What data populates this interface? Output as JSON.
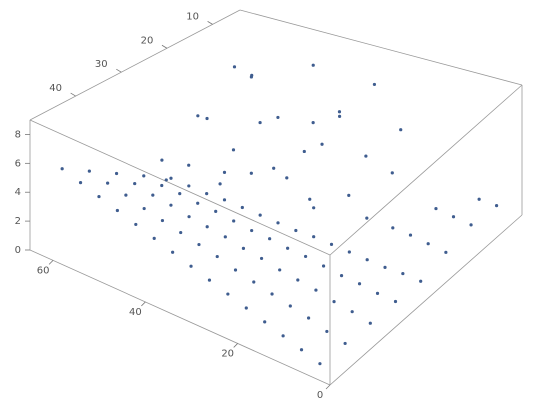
{
  "chart_data": {
    "type": "scatter3d",
    "color": "#3f5d8f",
    "xlim": [
      0,
      65
    ],
    "ylim": [
      4,
      50
    ],
    "zlim": [
      0,
      9
    ],
    "xticks": [
      0,
      20,
      40,
      60
    ],
    "yticks": [
      10,
      20,
      30,
      40
    ],
    "zticks": [
      0,
      2,
      4,
      6,
      8
    ],
    "x": [
      4,
      8,
      12,
      16,
      20,
      24,
      28,
      32,
      36,
      40,
      44,
      48,
      52,
      56,
      60,
      4,
      8,
      12,
      16,
      20,
      24,
      28,
      32,
      36,
      40,
      44,
      48,
      52,
      56,
      60,
      4,
      8,
      12,
      16,
      20,
      24,
      28,
      32,
      36,
      40,
      44,
      48,
      52,
      56,
      60,
      4,
      8,
      12,
      16,
      20,
      24,
      28,
      32,
      36,
      40,
      44,
      48,
      52,
      56,
      60,
      4,
      8,
      12,
      16,
      20,
      24,
      28,
      32,
      36,
      40,
      44,
      48,
      52,
      56,
      60,
      4,
      8,
      12,
      4,
      8,
      12,
      16,
      2,
      6,
      22,
      26,
      30,
      34,
      38,
      42,
      46,
      50,
      54,
      58,
      24,
      28,
      32,
      36,
      40,
      44,
      48,
      52,
      56,
      60,
      20,
      30,
      40,
      50,
      60,
      35,
      45,
      25,
      55,
      18
    ],
    "y": [
      24,
      24,
      24,
      24,
      24,
      24,
      24,
      24,
      24,
      24,
      24,
      24,
      24,
      24,
      24,
      30,
      30,
      30,
      30,
      30,
      30,
      30,
      30,
      30,
      30,
      30,
      30,
      30,
      30,
      30,
      36,
      36,
      36,
      36,
      36,
      36,
      36,
      36,
      36,
      36,
      36,
      36,
      36,
      36,
      36,
      42,
      42,
      42,
      42,
      42,
      42,
      42,
      42,
      42,
      42,
      42,
      42,
      42,
      42,
      42,
      48,
      48,
      48,
      48,
      48,
      48,
      48,
      48,
      48,
      48,
      48,
      48,
      48,
      48,
      48,
      12,
      12,
      12,
      18,
      18,
      18,
      18,
      8,
      8,
      10,
      14,
      8,
      12,
      16,
      10,
      14,
      20,
      12,
      18,
      20,
      24,
      18,
      22,
      26,
      20,
      24,
      28,
      22,
      26,
      14,
      16,
      12,
      16,
      10,
      26,
      28,
      28,
      30,
      22
    ],
    "z": [
      0.1,
      0.2,
      0.2,
      0.3,
      0.4,
      0.5,
      0.6,
      0.6,
      0.7,
      0.8,
      0.9,
      1.0,
      1.0,
      1.1,
      1.2,
      0.2,
      0.3,
      0.5,
      0.6,
      0.8,
      1.0,
      1.1,
      1.3,
      1.4,
      1.6,
      1.8,
      1.9,
      2.1,
      2.2,
      2.4,
      0.2,
      0.5,
      0.7,
      1.0,
      1.2,
      1.4,
      1.7,
      1.9,
      2.2,
      2.4,
      2.6,
      2.9,
      3.1,
      3.4,
      3.6,
      0.3,
      0.6,
      1.0,
      1.3,
      1.6,
      1.9,
      2.2,
      2.6,
      2.9,
      3.2,
      3.5,
      3.8,
      4.2,
      4.5,
      4.8,
      0.4,
      0.8,
      1.2,
      1.6,
      2.0,
      2.4,
      2.8,
      3.2,
      3.6,
      4.0,
      4.4,
      4.8,
      5.2,
      5.6,
      6.0,
      1.0,
      1.2,
      1.4,
      0.6,
      0.8,
      1.0,
      1.1,
      1.5,
      1.6,
      5.5,
      4.2,
      7.5,
      6.1,
      3.8,
      8.2,
      5.0,
      3.5,
      6.8,
      4.5,
      3.0,
      2.6,
      5.3,
      3.4,
      4.1,
      6.0,
      2.9,
      3.7,
      5.6,
      2.8,
      3.6,
      7.0,
      4.8,
      7.8,
      6.5,
      5.0,
      3.2,
      4.4,
      2.7,
      2.5
    ]
  }
}
